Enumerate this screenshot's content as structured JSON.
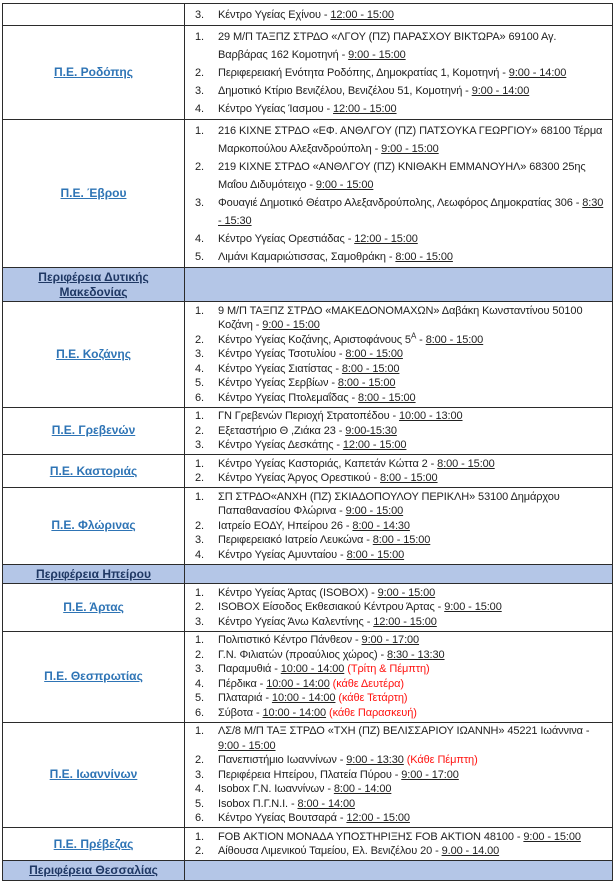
{
  "colors": {
    "region_link_blue": "#2E74B5",
    "header_background": "#B4C6E7",
    "header_text_navy": "#1F3864",
    "note_red": "#FF1310",
    "border_black": "#2B2B2B"
  },
  "table": {
    "rows": [
      {
        "type": "region",
        "label": "",
        "items": [
          {
            "num": "3.",
            "text": "Κέντρο Υγείας Εχίνου - ",
            "time": "12:00 - 15:00"
          }
        ]
      },
      {
        "type": "region",
        "label": "Π.Ε. Ροδόπης",
        "items": [
          {
            "num": "1.",
            "text": "29 Μ/Π ΤΑΞΠΖ ΣΤΡΔΟ «ΛΓΟΥ (ΠΖ) ΠΑΡΑΣΧΟΥ ΒΙΚΤΩΡΑ» 69100 Αγ. Βαρβάρας 162 Κομοτηνή - ",
            "time": "9:00 - 15:00"
          },
          {
            "num": "2.",
            "text": "Περιφερειακή Ενότητα Ροδόπης, Δημοκρατίας 1, Κομοτηνή - ",
            "time": "9:00 - 14:00"
          },
          {
            "num": "3.",
            "text": "Δημοτικό Κτίριο Βενιζέλου, Βενιζέλου 51, Κομοτηνή - ",
            "time": "9:00 - 14:00"
          },
          {
            "num": "4.",
            "text": "Κέντρο Υγείας Ίασμου - ",
            "time": "12:00 - 15:00"
          }
        ]
      },
      {
        "type": "region",
        "label": "Π.Ε. Έβρου",
        "items": [
          {
            "num": "1.",
            "text": "216 ΚΙΧΝΕ ΣΤΡΔΟ «ΕΦ. ΑΝΘΛΓΟΥ (ΠΖ) ΠΑΤΣΟΥΚΑ ΓΕΩΡΓΙΟΥ» 68100 Τέρμα Μαρκοπούλου Αλεξανδρούπολη - ",
            "time": "9:00 - 15:00"
          },
          {
            "num": "2.",
            "text": "219 ΚΙΧΝΕ ΣΤΡΔΟ «ΑΝΘΛΓΟΥ (ΠΖ) ΚΝΙΘΑΚΗ ΕΜΜΑΝΟΥΗΛ» 68300 25ης Μαΐου Διδυμότειχο - ",
            "time": "9:00 - 15:00"
          },
          {
            "num": "3.",
            "text": "Φουαγιέ Δημοτικό Θέατρο Αλεξανδρούπολης, Λεωφόρος Δημοκρατίας 306 - ",
            "time": "8:30 - 15:30"
          },
          {
            "num": "4.",
            "text": "Κέντρο Υγείας Ορεστιάδας - ",
            "time": "12:00 - 15:00"
          },
          {
            "num": "5.",
            "text": "Λιμάνι Καμαριώτισσας, Σαμοθράκη - ",
            "time": "8:00 - 15:00"
          }
        ]
      },
      {
        "type": "header",
        "label": "Περιφέρεια Δυτικής Μακεδονίας"
      },
      {
        "type": "region",
        "label": "Π.Ε. Κοζάνης",
        "items": [
          {
            "num": "1.",
            "text": "9 Μ/Π ΤΑΞΠΖ ΣΤΡΔΟ «ΜΑΚΕΔΟΝΟΜΑΧΩΝ» Δαβάκη Κωνσταντίνου 50100 Κοζάνη - ",
            "time": "9:00 - 15:00"
          },
          {
            "num": "2.",
            "text": "Κέντρο Υγείας Κοζάνης, Αριστοφάνους 5",
            "sup": "Α",
            "text2": " - ",
            "time": "8:00 - 15:00"
          },
          {
            "num": "3.",
            "text": "Κέντρο Υγείας Τσοτυλίου - ",
            "time": "8:00 - 15:00"
          },
          {
            "num": "4.",
            "text": "Κέντρο Υγείας Σιατίστας - ",
            "time": "8:00 - 15:00"
          },
          {
            "num": "5.",
            "text": "Κέντρο Υγείας Σερβίων - ",
            "time": "8:00 - 15:00"
          },
          {
            "num": "6.",
            "text": "Κέντρο Υγείας Πτολεμαΐδας - ",
            "time": "8:00 - 15:00"
          }
        ]
      },
      {
        "type": "region",
        "label": "Π.Ε. Γρεβενών",
        "items": [
          {
            "num": "1.",
            "text": "ΓΝ Γρεβενών Περιοχή Στρατοπέδου - ",
            "time": "10:00 - 13:00"
          },
          {
            "num": "2.",
            "text": "Εξεταστήριο Θ ,Ζιάκα 23 - ",
            "time": "9:00-15:30"
          },
          {
            "num": "3.",
            "text": "Κέντρο Υγείας Δεσκάτης - ",
            "time": "12:00 - 15:00"
          }
        ]
      },
      {
        "type": "region",
        "label": "Π.Ε. Καστοριάς",
        "items": [
          {
            "num": "1.",
            "text": "Κέντρο Υγείας Καστοριάς, Καπετάν Κώττα 2 - ",
            "time": "8:00 - 15:00"
          },
          {
            "num": "2.",
            "text": "Κέντρο Υγείας Άργος Ορεστικού - ",
            "time": "8:00 - 15:00"
          }
        ]
      },
      {
        "type": "region",
        "label": "Π.Ε. Φλώρινας",
        "items": [
          {
            "num": "1.",
            "text": "ΣΠ ΣΤΡΔΟ«ΑΝΧΗ (ΠΖ) ΣΚΙΑΔΟΠΟΥΛΟΥ ΠΕΡΙΚΛΗ» 53100 Δημάρχου Παπαθανασίου Φλώρινα - ",
            "time": "9:00 - 15:00"
          },
          {
            "num": "2.",
            "text": "Ιατρείο ΕΟΔΥ, Ηπείρου 26 - ",
            "time": "8:00 - 14:30"
          },
          {
            "num": "3.",
            "text": "Περιφερειακό Ιατρείο Λευκώνα - ",
            "time": "8:00 - 15:00"
          },
          {
            "num": "4.",
            "text": "Κέντρο Υγείας Αμυνταίου - ",
            "time": "8:00 - 15:00"
          }
        ]
      },
      {
        "type": "header",
        "label": "Περιφέρεια Ηπείρου"
      },
      {
        "type": "region",
        "label": "Π.Ε. Άρτας",
        "items": [
          {
            "num": "1.",
            "text": "Κέντρο Υγείας Άρτας (ISOBOX) - ",
            "time": "9:00 - 15:00"
          },
          {
            "num": "2.",
            "text": "ISOBOX Είσοδος Εκθεσιακού Κέντρου Άρτας - ",
            "time": "9:00 - 15:00"
          },
          {
            "num": "3.",
            "text": "Κέντρο Υγείας Άνω Καλεντίνης - ",
            "time": "12:00 - 15:00"
          }
        ]
      },
      {
        "type": "region",
        "label": "Π.Ε. Θεσπρωτίας",
        "items": [
          {
            "num": "1.",
            "text": "Πολιτιστικό Κέντρο Πάνθεον - ",
            "time": "9:00 - 17:00"
          },
          {
            "num": "2.",
            "text": "Γ.Ν. Φιλιατών (προαύλιος χώρος) - ",
            "time": "8:30 - 13:30"
          },
          {
            "num": "3.",
            "text": "Παραμυθιά - ",
            "time": "10:00 - 14:00",
            "note": " (Τρίτη & Πέμπτη)"
          },
          {
            "num": "4.",
            "text": "Πέρδικα - ",
            "time": "10:00 - 14:00",
            "note": " (κάθε Δευτέρα)"
          },
          {
            "num": "5.",
            "text": "Πλαταριά - ",
            "time": "10:00 - 14:00",
            "note": " (κάθε Τετάρτη)"
          },
          {
            "num": "6.",
            "text": "Σύβοτα - ",
            "time": "10:00 - 14:00",
            "note": " (κάθε Παρασκευή)"
          }
        ]
      },
      {
        "type": "region",
        "label": "Π.Ε. Ιωαννίνων",
        "items": [
          {
            "num": "1.",
            "text": "ΛΣ/8 Μ/Π ΤΑΞ ΣΤΡΔΟ «ΤΧΗ (ΠΖ) ΒΕΛΙΣΣΑΡΙΟΥ ΙΩΑΝΝΗ» 45221 Ιωάννινα - ",
            "time": "9:00 - 15:00"
          },
          {
            "num": "2.",
            "text": "Πανεπιστήμιο Ιωαννίνων - ",
            "time": "9:00 - 13:30",
            "note": " (Κάθε Πέμπτη)"
          },
          {
            "num": "3.",
            "text": "Περιφέρεια Ηπείρου, Πλατεία Πύρου - ",
            "time": "9:00 - 17:00"
          },
          {
            "num": "4.",
            "text": "Isobox Γ.Ν. Ιωαννίνων - ",
            "time": "8:00 - 14:00"
          },
          {
            "num": "5.",
            "text": "Isobox Π.Γ.Ν.Ι. - ",
            "time": "8:00 - 14:00"
          },
          {
            "num": "6.",
            "text": "Κέντρο Υγείας Βουτσαρά - ",
            "time": "12:00 - 15:00"
          }
        ]
      },
      {
        "type": "region",
        "label": "Π.Ε. Πρέβεζας",
        "items": [
          {
            "num": "1.",
            "text": "FOB ΑΚΤΙΟΝ ΜΟΝΑΔΑ ΥΠΟΣΤΗΡΙΞΗΣ FOB ΑΚΤΙΟΝ 48100 - ",
            "time": "9:00 - 15:00"
          },
          {
            "num": "2.",
            "text": "Αίθουσα Λιμενικού Ταμείου, Ελ. Βενιζέλου 20 - ",
            "time": "9.00 - 14.00"
          }
        ]
      },
      {
        "type": "header",
        "label": "Περιφέρεια Θεσσαλίας"
      }
    ]
  }
}
